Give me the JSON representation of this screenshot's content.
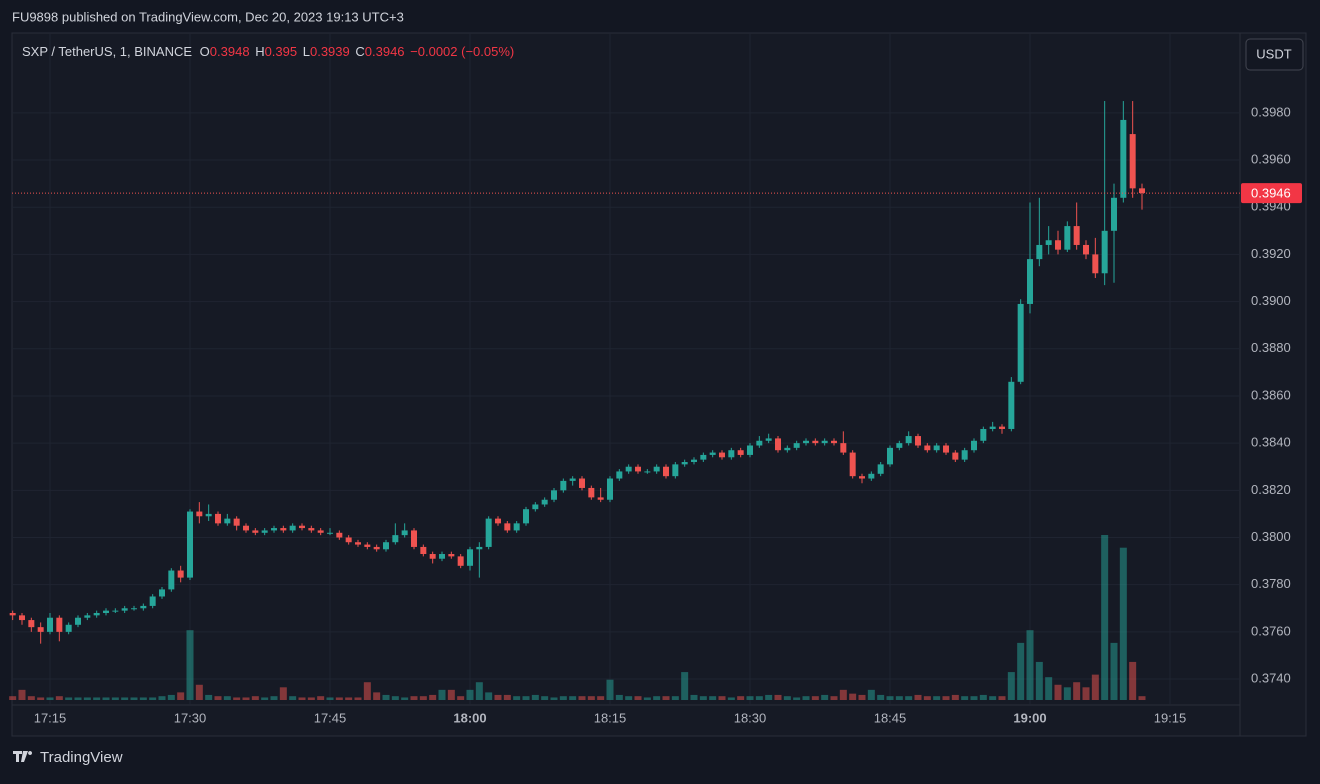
{
  "chart_data": {
    "type": "candlestick",
    "title": "FU9898 published on TradingView.com, Dec 20, 2023 19:13 UTC+3",
    "symbol": "SXP / TetherUS, 1, BINANCE",
    "ohlc_labels": [
      "O",
      "H",
      "L",
      "C"
    ],
    "change": "−0.0002 (−0.05%)",
    "currency": "USDT",
    "brand": "TradingView",
    "colors": {
      "up": "#26a69a",
      "down": "#ef5350"
    },
    "grid": true,
    "ylim": [
      0.3729,
      0.4013
    ],
    "yticks": [
      {
        "value": 0.374,
        "label": "0.3740"
      },
      {
        "value": 0.376,
        "label": "0.3760"
      },
      {
        "value": 0.378,
        "label": "0.3780"
      },
      {
        "value": 0.38,
        "label": "0.3800"
      },
      {
        "value": 0.382,
        "label": "0.3820"
      },
      {
        "value": 0.384,
        "label": "0.3840"
      },
      {
        "value": 0.386,
        "label": "0.3860"
      },
      {
        "value": 0.388,
        "label": "0.3880"
      },
      {
        "value": 0.39,
        "label": "0.3900"
      },
      {
        "value": 0.392,
        "label": "0.3920"
      },
      {
        "value": 0.394,
        "label": "0.3940"
      },
      {
        "value": 0.396,
        "label": "0.3960"
      },
      {
        "value": 0.398,
        "label": "0.3980"
      }
    ],
    "xticks": [
      "17:15",
      "17:30",
      "17:45",
      "18:00",
      "18:15",
      "18:30",
      "18:45",
      "19:00",
      "19:15"
    ],
    "x": [
      "17:11",
      "17:12",
      "17:13",
      "17:14",
      "17:15",
      "17:16",
      "17:17",
      "17:18",
      "17:19",
      "17:20",
      "17:21",
      "17:22",
      "17:23",
      "17:24",
      "17:25",
      "17:26",
      "17:27",
      "17:28",
      "17:29",
      "17:30",
      "17:31",
      "17:32",
      "17:33",
      "17:34",
      "17:35",
      "17:36",
      "17:37",
      "17:38",
      "17:39",
      "17:40",
      "17:41",
      "17:42",
      "17:43",
      "17:44",
      "17:45",
      "17:46",
      "17:47",
      "17:48",
      "17:49",
      "17:50",
      "17:51",
      "17:52",
      "17:53",
      "17:54",
      "17:55",
      "17:56",
      "17:57",
      "17:58",
      "17:59",
      "18:00",
      "18:01",
      "18:02",
      "18:03",
      "18:04",
      "18:05",
      "18:06",
      "18:07",
      "18:08",
      "18:09",
      "18:10",
      "18:11",
      "18:12",
      "18:13",
      "18:14",
      "18:15",
      "18:16",
      "18:17",
      "18:18",
      "18:19",
      "18:20",
      "18:21",
      "18:22",
      "18:23",
      "18:24",
      "18:25",
      "18:26",
      "18:27",
      "18:28",
      "18:29",
      "18:30",
      "18:31",
      "18:32",
      "18:33",
      "18:34",
      "18:35",
      "18:36",
      "18:37",
      "18:38",
      "18:39",
      "18:40",
      "18:41",
      "18:42",
      "18:43",
      "18:44",
      "18:45",
      "18:46",
      "18:47",
      "18:48",
      "18:49",
      "18:50",
      "18:51",
      "18:52",
      "18:53",
      "18:54",
      "18:55",
      "18:56",
      "18:57",
      "18:58",
      "18:59",
      "19:00",
      "19:01",
      "19:02",
      "19:03",
      "19:04",
      "19:05",
      "19:06",
      "19:07",
      "19:08",
      "19:09",
      "19:10",
      "19:11",
      "19:12"
    ],
    "ohlc": [
      [
        0.3768,
        0.3769,
        0.3765,
        0.3767
      ],
      [
        0.3767,
        0.3768,
        0.3763,
        0.3765
      ],
      [
        0.3765,
        0.3766,
        0.376,
        0.3762
      ],
      [
        0.3762,
        0.3764,
        0.3755,
        0.376
      ],
      [
        0.376,
        0.3768,
        0.3759,
        0.3766
      ],
      [
        0.3766,
        0.3767,
        0.3756,
        0.376
      ],
      [
        0.376,
        0.3764,
        0.3759,
        0.3763
      ],
      [
        0.3763,
        0.3767,
        0.3762,
        0.3766
      ],
      [
        0.3766,
        0.3768,
        0.3765,
        0.3767
      ],
      [
        0.3767,
        0.3769,
        0.3766,
        0.3768
      ],
      [
        0.3768,
        0.377,
        0.3767,
        0.3769
      ],
      [
        0.3769,
        0.377,
        0.3768,
        0.3769
      ],
      [
        0.3769,
        0.3771,
        0.3768,
        0.377
      ],
      [
        0.377,
        0.3771,
        0.3769,
        0.377
      ],
      [
        0.377,
        0.3772,
        0.3769,
        0.3771
      ],
      [
        0.3771,
        0.3776,
        0.377,
        0.3775
      ],
      [
        0.3775,
        0.3779,
        0.3774,
        0.3778
      ],
      [
        0.3778,
        0.3787,
        0.3777,
        0.3786
      ],
      [
        0.3786,
        0.3788,
        0.3781,
        0.3783
      ],
      [
        0.3783,
        0.3812,
        0.3782,
        0.3811
      ],
      [
        0.3811,
        0.3815,
        0.3806,
        0.3809
      ],
      [
        0.3809,
        0.3814,
        0.3807,
        0.381
      ],
      [
        0.381,
        0.3811,
        0.3805,
        0.3806
      ],
      [
        0.3806,
        0.381,
        0.3805,
        0.3808
      ],
      [
        0.3808,
        0.3809,
        0.3803,
        0.3805
      ],
      [
        0.3805,
        0.3806,
        0.3802,
        0.3803
      ],
      [
        0.3803,
        0.3804,
        0.3801,
        0.3802
      ],
      [
        0.3802,
        0.3804,
        0.3801,
        0.3803
      ],
      [
        0.3803,
        0.3805,
        0.3802,
        0.3804
      ],
      [
        0.3804,
        0.3805,
        0.3802,
        0.3803
      ],
      [
        0.3803,
        0.3806,
        0.3802,
        0.3805
      ],
      [
        0.3805,
        0.3806,
        0.3803,
        0.3804
      ],
      [
        0.3804,
        0.3805,
        0.3802,
        0.3803
      ],
      [
        0.3803,
        0.3804,
        0.3801,
        0.3802
      ],
      [
        0.3802,
        0.3804,
        0.3801,
        0.3802
      ],
      [
        0.3802,
        0.3803,
        0.3799,
        0.38
      ],
      [
        0.38,
        0.3801,
        0.3797,
        0.3798
      ],
      [
        0.3798,
        0.3799,
        0.3796,
        0.3797
      ],
      [
        0.3797,
        0.3798,
        0.3795,
        0.3796
      ],
      [
        0.3796,
        0.3797,
        0.3794,
        0.3795
      ],
      [
        0.3795,
        0.3799,
        0.3794,
        0.3798
      ],
      [
        0.3798,
        0.3806,
        0.3797,
        0.3801
      ],
      [
        0.3801,
        0.3806,
        0.38,
        0.3803
      ],
      [
        0.3803,
        0.3804,
        0.3795,
        0.3796
      ],
      [
        0.3796,
        0.3797,
        0.3792,
        0.3793
      ],
      [
        0.3793,
        0.3794,
        0.3789,
        0.3791
      ],
      [
        0.3791,
        0.3794,
        0.379,
        0.3793
      ],
      [
        0.3793,
        0.3794,
        0.3791,
        0.3792
      ],
      [
        0.3792,
        0.3793,
        0.3787,
        0.3788
      ],
      [
        0.3788,
        0.3796,
        0.3786,
        0.3795
      ],
      [
        0.3795,
        0.3798,
        0.3783,
        0.3796
      ],
      [
        0.3796,
        0.3809,
        0.3795,
        0.3808
      ],
      [
        0.3808,
        0.3809,
        0.3805,
        0.3806
      ],
      [
        0.3806,
        0.3807,
        0.3802,
        0.3803
      ],
      [
        0.3803,
        0.3807,
        0.3802,
        0.3806
      ],
      [
        0.3806,
        0.3813,
        0.3805,
        0.3812
      ],
      [
        0.3812,
        0.3815,
        0.3811,
        0.3814
      ],
      [
        0.3814,
        0.3817,
        0.3813,
        0.3816
      ],
      [
        0.3816,
        0.3821,
        0.3815,
        0.382
      ],
      [
        0.382,
        0.3825,
        0.3819,
        0.3824
      ],
      [
        0.3824,
        0.3826,
        0.3822,
        0.3825
      ],
      [
        0.3825,
        0.3826,
        0.382,
        0.3821
      ],
      [
        0.3821,
        0.3822,
        0.3816,
        0.3817
      ],
      [
        0.3817,
        0.3821,
        0.3815,
        0.3816
      ],
      [
        0.3816,
        0.3826,
        0.3815,
        0.3825
      ],
      [
        0.3825,
        0.3829,
        0.3824,
        0.3828
      ],
      [
        0.3828,
        0.3831,
        0.3827,
        0.383
      ],
      [
        0.383,
        0.3831,
        0.3827,
        0.3828
      ],
      [
        0.3828,
        0.3829,
        0.3827,
        0.3828
      ],
      [
        0.3828,
        0.3831,
        0.3827,
        0.383
      ],
      [
        0.383,
        0.3831,
        0.3825,
        0.3826
      ],
      [
        0.3826,
        0.3832,
        0.3825,
        0.3831
      ],
      [
        0.3831,
        0.3833,
        0.383,
        0.3832
      ],
      [
        0.3832,
        0.3834,
        0.3831,
        0.3833
      ],
      [
        0.3833,
        0.3836,
        0.3832,
        0.3835
      ],
      [
        0.3835,
        0.3837,
        0.3834,
        0.3836
      ],
      [
        0.3836,
        0.3837,
        0.3833,
        0.3834
      ],
      [
        0.3834,
        0.3838,
        0.3833,
        0.3837
      ],
      [
        0.3837,
        0.3838,
        0.3834,
        0.3835
      ],
      [
        0.3835,
        0.384,
        0.3834,
        0.3839
      ],
      [
        0.3839,
        0.3843,
        0.3838,
        0.3841
      ],
      [
        0.3841,
        0.3844,
        0.384,
        0.3842
      ],
      [
        0.3842,
        0.3843,
        0.3836,
        0.3837
      ],
      [
        0.3837,
        0.3839,
        0.3836,
        0.3838
      ],
      [
        0.3838,
        0.3841,
        0.3837,
        0.384
      ],
      [
        0.384,
        0.3842,
        0.3839,
        0.3841
      ],
      [
        0.3841,
        0.3842,
        0.3839,
        0.384
      ],
      [
        0.384,
        0.3842,
        0.3839,
        0.3841
      ],
      [
        0.3841,
        0.3842,
        0.3839,
        0.384
      ],
      [
        0.384,
        0.3845,
        0.3835,
        0.3836
      ],
      [
        0.3836,
        0.3837,
        0.3825,
        0.3826
      ],
      [
        0.3826,
        0.3827,
        0.3823,
        0.3825
      ],
      [
        0.3825,
        0.3828,
        0.3824,
        0.3827
      ],
      [
        0.3827,
        0.3832,
        0.3826,
        0.3831
      ],
      [
        0.3831,
        0.3839,
        0.383,
        0.3838
      ],
      [
        0.3838,
        0.3841,
        0.3837,
        0.384
      ],
      [
        0.384,
        0.3845,
        0.3839,
        0.3843
      ],
      [
        0.3843,
        0.3844,
        0.3838,
        0.3839
      ],
      [
        0.3839,
        0.384,
        0.3836,
        0.3837
      ],
      [
        0.3837,
        0.384,
        0.3836,
        0.3839
      ],
      [
        0.3839,
        0.384,
        0.3835,
        0.3836
      ],
      [
        0.3836,
        0.3837,
        0.3832,
        0.3833
      ],
      [
        0.3833,
        0.3838,
        0.3832,
        0.3837
      ],
      [
        0.3837,
        0.3842,
        0.3836,
        0.3841
      ],
      [
        0.3841,
        0.3847,
        0.384,
        0.3846
      ],
      [
        0.3846,
        0.3849,
        0.3845,
        0.3847
      ],
      [
        0.3847,
        0.3848,
        0.3844,
        0.3846
      ],
      [
        0.3846,
        0.3868,
        0.3845,
        0.3866
      ],
      [
        0.3866,
        0.3901,
        0.3865,
        0.3899
      ],
      [
        0.3899,
        0.3942,
        0.3895,
        0.3918
      ],
      [
        0.3918,
        0.3944,
        0.3915,
        0.3924
      ],
      [
        0.3924,
        0.3932,
        0.392,
        0.3926
      ],
      [
        0.3926,
        0.393,
        0.392,
        0.3922
      ],
      [
        0.3922,
        0.3934,
        0.3921,
        0.3932
      ],
      [
        0.3932,
        0.3942,
        0.3922,
        0.3924
      ],
      [
        0.3924,
        0.3926,
        0.3918,
        0.392
      ],
      [
        0.392,
        0.3927,
        0.391,
        0.3912
      ],
      [
        0.3912,
        0.3985,
        0.3907,
        0.393
      ],
      [
        0.393,
        0.395,
        0.3908,
        0.3944
      ],
      [
        0.3944,
        0.3985,
        0.3942,
        0.3977
      ],
      [
        0.3971,
        0.3985,
        0.3944,
        0.3948
      ],
      [
        0.3948,
        0.395,
        0.3939,
        0.3946
      ]
    ],
    "volume": [
      3,
      8,
      3,
      2,
      2,
      3,
      2,
      2,
      2,
      2,
      2,
      2,
      2,
      2,
      2,
      2,
      3,
      4,
      6,
      55,
      12,
      4,
      3,
      3,
      2,
      2,
      3,
      2,
      3,
      10,
      3,
      2,
      2,
      3,
      2,
      2,
      2,
      2,
      14,
      6,
      4,
      3,
      2,
      3,
      3,
      4,
      8,
      8,
      3,
      8,
      14,
      6,
      4,
      4,
      3,
      3,
      4,
      3,
      2,
      3,
      3,
      3,
      3,
      3,
      16,
      4,
      3,
      3,
      2,
      3,
      3,
      3,
      22,
      4,
      3,
      3,
      3,
      2,
      3,
      3,
      3,
      4,
      4,
      3,
      2,
      3,
      3,
      4,
      3,
      8,
      5,
      4,
      8,
      4,
      3,
      3,
      3,
      4,
      3,
      3,
      3,
      4,
      3,
      3,
      4,
      3,
      3,
      22,
      45,
      55,
      30,
      18,
      12,
      10,
      14,
      10,
      20,
      130,
      45,
      120,
      30,
      3
    ]
  }
}
